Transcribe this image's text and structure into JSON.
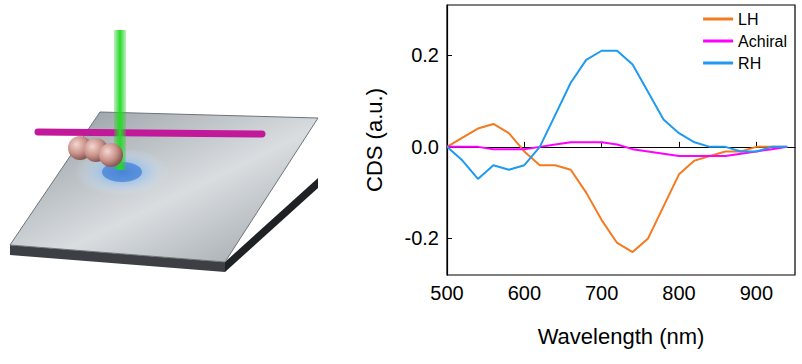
{
  "chart_data": {
    "type": "line",
    "xlabel": "Wavelength (nm)",
    "ylabel": "CDS (a.u.)",
    "x": [
      500,
      520,
      540,
      560,
      580,
      600,
      620,
      640,
      660,
      680,
      700,
      720,
      740,
      760,
      780,
      800,
      820,
      840,
      860,
      880,
      900,
      920,
      940
    ],
    "series": [
      {
        "name": "LH",
        "color": "#f47a20",
        "values": [
          0,
          0.02,
          0.04,
          0.05,
          0.03,
          -0.01,
          -0.04,
          -0.04,
          -0.05,
          -0.1,
          -0.16,
          -0.21,
          -0.23,
          -0.2,
          -0.13,
          -0.06,
          -0.03,
          -0.02,
          -0.01,
          -0.01,
          0,
          0,
          0
        ]
      },
      {
        "name": "Achiral",
        "color": "#ff00ff",
        "values": [
          0,
          0,
          0,
          -0.005,
          -0.005,
          -0.005,
          0,
          0.005,
          0.01,
          0.01,
          0.01,
          0.005,
          -0.005,
          -0.01,
          -0.015,
          -0.02,
          -0.02,
          -0.02,
          -0.02,
          -0.015,
          -0.01,
          -0.005,
          0
        ]
      },
      {
        "name": "RH",
        "color": "#1e9bf0",
        "values": [
          0,
          -0.03,
          -0.07,
          -0.04,
          -0.05,
          -0.04,
          0,
          0.07,
          0.14,
          0.19,
          0.21,
          0.21,
          0.18,
          0.12,
          0.06,
          0.03,
          0.01,
          0,
          0,
          -0.01,
          -0.01,
          0,
          0
        ]
      }
    ],
    "xlim": [
      500,
      950
    ],
    "xticks": [
      500,
      600,
      700,
      800,
      900
    ],
    "ylim": [
      -0.28,
      0.31
    ],
    "yticks": [
      -0.2,
      {
        "value": 0,
        "label": "0.0"
      },
      0.2
    ],
    "legend": "top-right",
    "grid": false
  }
}
